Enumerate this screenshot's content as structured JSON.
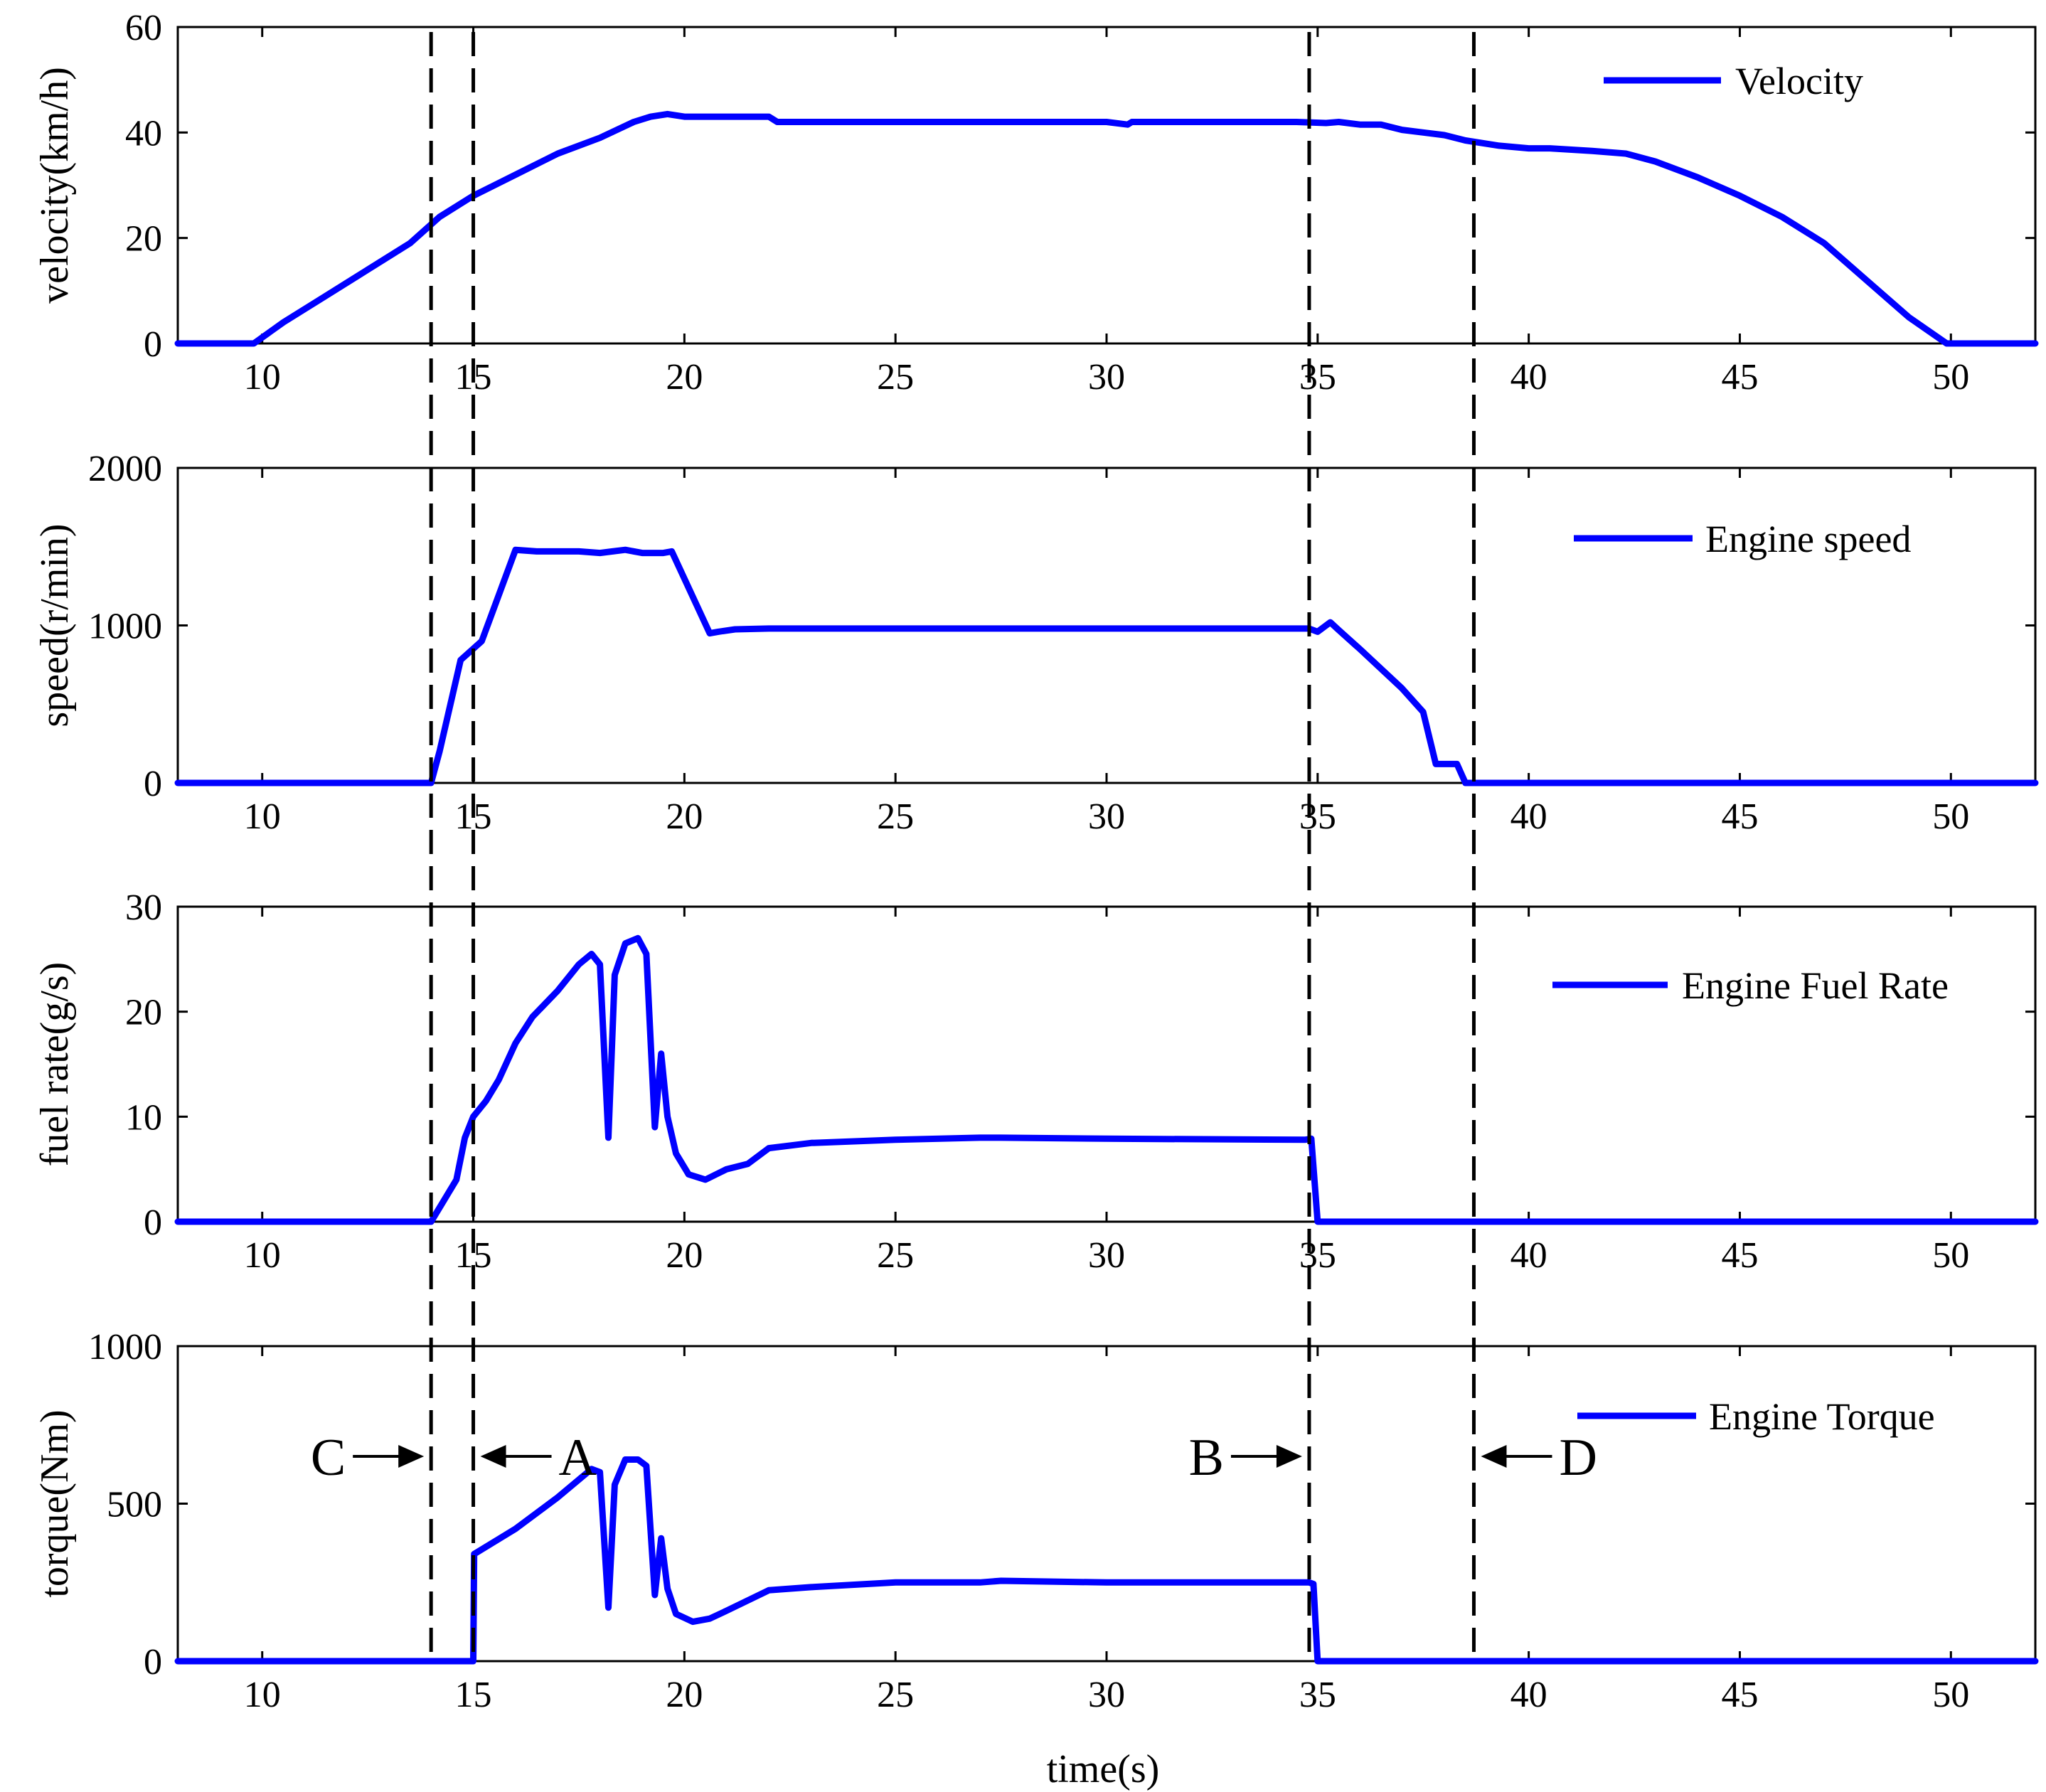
{
  "figure": {
    "xlabel": "time(s)",
    "series_color": "#0000FF",
    "marker_color": "#000000"
  },
  "chart_data": [
    {
      "type": "line",
      "ylabel": "velocity(km/h)",
      "xlim": [
        8,
        52
      ],
      "ylim": [
        0,
        60
      ],
      "xticks": [
        10,
        15,
        20,
        25,
        30,
        35,
        40,
        45,
        50
      ],
      "yticks": [
        0,
        20,
        40,
        60
      ],
      "legend": "top-right",
      "series": [
        {
          "name": "Velocity",
          "x": [
            8,
            9.8,
            10.5,
            11.5,
            12.5,
            13.5,
            14.2,
            15,
            16,
            17,
            18,
            18.8,
            19.2,
            19.6,
            20,
            21,
            22,
            22.2,
            25,
            30,
            30.5,
            30.6,
            34.5,
            35.2,
            35.5,
            36,
            36.5,
            37,
            37.5,
            38,
            38.5,
            39.3,
            40,
            40.5,
            41.5,
            42.3,
            43,
            44,
            45,
            46,
            47,
            48,
            49,
            49.9,
            50.2,
            52
          ],
          "y": [
            0,
            0,
            4,
            9,
            14,
            19,
            24,
            28,
            32,
            36,
            39,
            42,
            43,
            43.5,
            43,
            43,
            43,
            42,
            42,
            42,
            41.5,
            42,
            42,
            41.8,
            42,
            41.5,
            41.5,
            40.5,
            40,
            39.5,
            38.5,
            37.5,
            37,
            37,
            36.5,
            36,
            34.5,
            31.5,
            28,
            24,
            19,
            12,
            5,
            0,
            0,
            0
          ]
        }
      ]
    },
    {
      "type": "line",
      "ylabel": "speed(r/min)",
      "xlim": [
        8,
        52
      ],
      "ylim": [
        0,
        2000
      ],
      "xticks": [
        10,
        15,
        20,
        25,
        30,
        35,
        40,
        45,
        50
      ],
      "yticks": [
        0,
        1000,
        2000
      ],
      "legend": "top-right",
      "series": [
        {
          "name": "Engine speed",
          "x": [
            8,
            14,
            14.2,
            14.7,
            15.2,
            16,
            16.5,
            17.5,
            18,
            18.3,
            18.6,
            19,
            19.5,
            19.7,
            20.6,
            20.8,
            21.2,
            22,
            25,
            30,
            34.8,
            35,
            35.3,
            35.5,
            36,
            37,
            37.5,
            37.8,
            38.1,
            38.3,
            38.5,
            52
          ],
          "y": [
            0,
            0,
            200,
            780,
            900,
            1480,
            1470,
            1470,
            1460,
            1470,
            1480,
            1460,
            1460,
            1470,
            950,
            960,
            975,
            980,
            980,
            980,
            980,
            960,
            1020,
            970,
            850,
            600,
            450,
            120,
            120,
            120,
            0,
            0
          ]
        }
      ]
    },
    {
      "type": "line",
      "ylabel": "fuel rate(g/s)",
      "xlim": [
        8,
        52
      ],
      "ylim": [
        0,
        30
      ],
      "xticks": [
        10,
        15,
        20,
        25,
        30,
        35,
        40,
        45,
        50
      ],
      "yticks": [
        0,
        10,
        20,
        30
      ],
      "legend": "top-right",
      "series": [
        {
          "name": "Engine Fuel Rate",
          "x": [
            8,
            14,
            14.3,
            14.6,
            14.8,
            15,
            15.3,
            15.6,
            16,
            16.4,
            17,
            17.5,
            17.8,
            18,
            18.2,
            18.35,
            18.6,
            18.9,
            19.1,
            19.3,
            19.45,
            19.6,
            19.8,
            20.1,
            20.5,
            21,
            21.5,
            22,
            23,
            25,
            27,
            27.5,
            30,
            34.7,
            34.85,
            35,
            52
          ],
          "y": [
            0,
            0,
            2,
            4,
            8,
            10,
            11.5,
            13.5,
            17,
            19.5,
            22,
            24.5,
            25.5,
            24.5,
            8,
            23.5,
            26.5,
            27,
            25.5,
            9,
            16,
            10,
            6.5,
            4.5,
            4,
            5,
            5.5,
            7,
            7.5,
            7.8,
            8,
            8,
            7.9,
            7.8,
            7.9,
            0,
            0
          ]
        }
      ]
    },
    {
      "type": "line",
      "ylabel": "torque(Nm)",
      "xlim": [
        8,
        52
      ],
      "ylim": [
        0,
        1000
      ],
      "xticks": [
        10,
        15,
        20,
        25,
        30,
        35,
        40,
        45,
        50
      ],
      "yticks": [
        0,
        500,
        1000
      ],
      "legend": "top-right",
      "series": [
        {
          "name": "Engine Torque",
          "x": [
            8,
            15,
            15.02,
            16,
            17,
            17.8,
            18,
            18.2,
            18.35,
            18.6,
            18.9,
            19.1,
            19.3,
            19.45,
            19.6,
            19.8,
            20.2,
            20.6,
            21,
            22,
            23,
            25,
            27,
            27.5,
            30,
            34.8,
            34.9,
            35,
            52
          ],
          "y": [
            0,
            0,
            340,
            420,
            520,
            610,
            600,
            170,
            560,
            640,
            640,
            620,
            210,
            390,
            230,
            150,
            125,
            135,
            160,
            225,
            235,
            250,
            250,
            255,
            250,
            250,
            245,
            0,
            0
          ]
        }
      ]
    }
  ],
  "markers": {
    "vertical_lines_x": [
      14,
      15,
      34.8,
      38.7
    ],
    "annotations": [
      {
        "label": "C",
        "x": 14,
        "arrow": "right"
      },
      {
        "label": "A",
        "x": 15,
        "arrow": "left"
      },
      {
        "label": "B",
        "x": 34.8,
        "arrow": "right"
      },
      {
        "label": "D",
        "x": 38.7,
        "arrow": "left"
      }
    ]
  }
}
